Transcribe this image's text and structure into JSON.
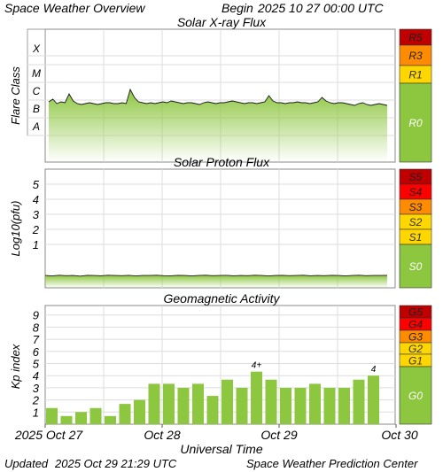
{
  "header": {
    "left": "Space Weather Overview",
    "begin_label": "Begin",
    "begin_value": "2025 10 27 00:00 UTC"
  },
  "footer": {
    "updated_label": "Updated",
    "updated_value": "2025 Oct 29 21:29 UTC",
    "center": "Space Weather Prediction Center"
  },
  "colors": {
    "green": "#8dc63f",
    "grid": "#dddddd",
    "scale_colors": {
      "R5": "#c00000",
      "R3": "#ff8c00",
      "R1": "#ffd700",
      "R0": "#8dc63f",
      "S5": "#c00000",
      "S4": "#ff0000",
      "S3": "#ff8c00",
      "S2": "#ffd700",
      "S1": "#ffd700",
      "S0": "#8dc63f",
      "G5": "#c00000",
      "G4": "#ff0000",
      "G3": "#ff8c00",
      "G2": "#ffd700",
      "G1": "#ffd700",
      "G0": "#8dc63f"
    }
  },
  "chart_data": [
    {
      "type": "area",
      "title": "Solar X-ray Flux",
      "ylabel": "Flare Class",
      "y_ticks": [
        "X",
        "M",
        "C",
        "B",
        "A"
      ],
      "scale_labels": [
        "R5",
        "R3",
        "R1",
        "R0"
      ],
      "series": [
        {
          "level_class": [
            0.15,
            0.3,
            0.05,
            0.15,
            0.1,
            0.6,
            0.2,
            0.05,
            0.0,
            0.05,
            0.1,
            0.05,
            0.0,
            0.05,
            0.1,
            0.1,
            0.05,
            0.05,
            0.1,
            0.05,
            0.85,
            0.4,
            0.15,
            0.1,
            0.05,
            0.1,
            0.05,
            0.1,
            0.15,
            0.1,
            0.2,
            0.15,
            0.1,
            0.05,
            0.1,
            0.1,
            0.05,
            0.0,
            0.1,
            0.15,
            0.1,
            0.05,
            0.1,
            0.1,
            0.15,
            0.2,
            0.15,
            0.1,
            0.05,
            0.1,
            0.1,
            0.05,
            0.1,
            0.15,
            0.5,
            0.2,
            0.1,
            0.1,
            0.05,
            0.1,
            0.1,
            0.15,
            0.1,
            0.1,
            0.05,
            0.1,
            0.15,
            0.4,
            0.2,
            0.1,
            0.05,
            0.1,
            0.1,
            0.05,
            0.0,
            -0.05,
            0.05,
            0.1,
            0.0,
            -0.05,
            0.0,
            0.05,
            0.0,
            -0.05
          ]
        }
      ]
    },
    {
      "type": "area",
      "title": "Solar Proton Flux",
      "ylabel": "Log10(pfu)",
      "y_ticks": [
        "5",
        "4",
        "3",
        "2",
        "1"
      ],
      "scale_labels": [
        "S5",
        "S4",
        "S3",
        "S2",
        "S1",
        "S0"
      ],
      "series": [
        {
          "log_pfu": [
            -1.3,
            -1.33,
            -1.28,
            -1.31,
            -1.3,
            -1.34,
            -1.29,
            -1.3,
            -1.32,
            -1.28,
            -1.3,
            -1.31,
            -1.29,
            -1.33,
            -1.3,
            -1.3,
            -1.28,
            -1.31,
            -1.32,
            -1.29,
            -1.3,
            -1.33,
            -1.3,
            -1.28,
            -1.31,
            -1.3,
            -1.29,
            -1.32,
            -1.3,
            -1.31,
            -1.28,
            -1.3,
            -1.33,
            -1.3,
            -1.29,
            -1.31,
            -1.3,
            -1.28,
            -1.32,
            -1.3,
            -1.31,
            -1.29,
            -1.3,
            -1.33,
            -1.3,
            -1.28,
            -1.31,
            -1.3,
            -1.3,
            -1.29
          ]
        }
      ]
    },
    {
      "type": "bar",
      "title": "Geomagnetic Activity",
      "ylabel": "Kp index",
      "xlabel": "Universal Time",
      "y_ticks": [
        "9",
        "8",
        "7",
        "6",
        "5",
        "4",
        "3",
        "2",
        "1"
      ],
      "x_tick_labels": [
        "2025 Oct 27",
        "Oct 28",
        "Oct 29",
        "Oct 30"
      ],
      "scale_labels": [
        "G5",
        "G4",
        "G3",
        "G2",
        "G1",
        "G0"
      ],
      "values": [
        1.33,
        0.67,
        1.0,
        1.33,
        0.67,
        1.67,
        2.0,
        3.33,
        3.33,
        3.0,
        3.33,
        2.33,
        3.67,
        3.0,
        4.33,
        3.67,
        3.0,
        3.0,
        3.33,
        3.0,
        3.0,
        3.67,
        4.0
      ],
      "annotations": [
        {
          "bar_index": 14,
          "text": "4+"
        },
        {
          "bar_index": 22,
          "text": "4"
        }
      ]
    }
  ]
}
